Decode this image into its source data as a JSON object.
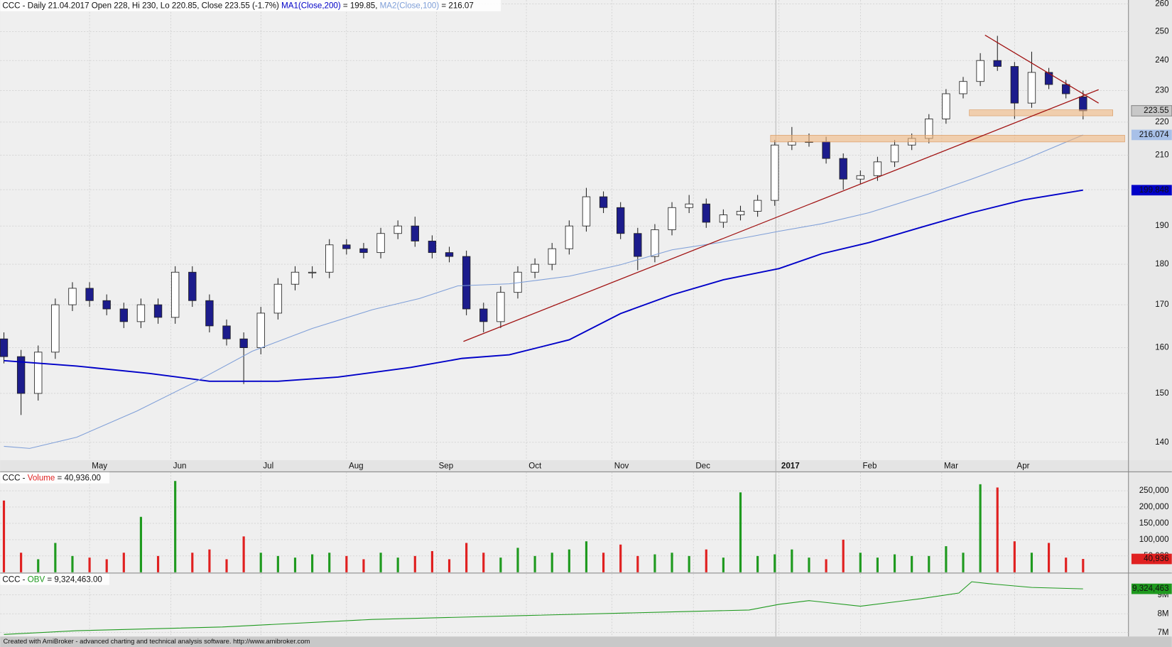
{
  "chart_data": [
    {
      "type": "candlestick",
      "title": "CCC - Daily 21.04.2017 Open 228, Hi 230, Lo 220.85, Close 223.55 (-1.7%)",
      "log_scale": true,
      "grid": true,
      "xlim": [
        -0.87,
        262.6
      ],
      "xticks": [
        {
          "value": 20,
          "label": "May"
        },
        {
          "value": 39,
          "label": "Jun"
        },
        {
          "value": 60,
          "label": "Jul"
        },
        {
          "value": 80,
          "label": "Aug"
        },
        {
          "value": 101,
          "label": "Sep"
        },
        {
          "value": 122,
          "label": "Oct"
        },
        {
          "value": 142,
          "label": "Nov"
        },
        {
          "value": 161,
          "label": "Dec"
        },
        {
          "value": 181,
          "label": "2017"
        },
        {
          "value": 200,
          "label": "Feb"
        },
        {
          "value": 219,
          "label": "Mar"
        },
        {
          "value": 236,
          "label": "Apr"
        }
      ],
      "ylim": [
        136.5,
        261.4
      ],
      "yticks": [
        140,
        150,
        160,
        170,
        180,
        190,
        200,
        210,
        220,
        230,
        240,
        250,
        260
      ],
      "up_color": "#ffffff",
      "down_color": "#1c1c8c",
      "last_label": "223.55",
      "x": [
        0,
        4,
        8,
        12,
        16,
        20,
        24,
        28,
        32,
        36,
        40,
        44,
        48,
        52,
        56,
        60,
        64,
        68,
        72,
        76,
        80,
        84,
        88,
        92,
        96,
        100,
        104,
        108,
        112,
        116,
        120,
        124,
        128,
        132,
        136,
        140,
        144,
        148,
        152,
        156,
        160,
        164,
        168,
        172,
        176,
        180,
        184,
        188,
        192,
        196,
        200,
        204,
        208,
        212,
        216,
        220,
        224,
        228,
        232,
        236,
        240,
        244,
        248,
        252
      ],
      "open": [
        162,
        158,
        150,
        159,
        170,
        174,
        171,
        169,
        166,
        170,
        167,
        178,
        171,
        165,
        162,
        160,
        168,
        175,
        178,
        178,
        185,
        184,
        183,
        188,
        190,
        186,
        183,
        182,
        169,
        166,
        173,
        178,
        180,
        184,
        190,
        198,
        195,
        188,
        182,
        189,
        195,
        196,
        191,
        193,
        194,
        197,
        213,
        214,
        214,
        209,
        203,
        204,
        208,
        213,
        215,
        221,
        229,
        233,
        240,
        238,
        226,
        236,
        232,
        228
      ],
      "high": [
        163.5,
        159.5,
        160.5,
        171.5,
        175.5,
        175.5,
        172.5,
        170.5,
        171.5,
        171.5,
        179.5,
        179.5,
        172.5,
        166.5,
        163.5,
        169.5,
        176.5,
        179.5,
        179.5,
        186.5,
        186.5,
        185.5,
        189.5,
        191.5,
        192.5,
        187.5,
        184.5,
        183.5,
        170.5,
        174.5,
        179.5,
        181.5,
        185.5,
        191.5,
        200.5,
        199.5,
        196.5,
        189.5,
        190.5,
        196.5,
        198.5,
        197.5,
        194.5,
        195.5,
        198.5,
        214.5,
        218.5,
        216.5,
        215.5,
        210.5,
        205.5,
        209.5,
        214.5,
        216.5,
        222.5,
        230.5,
        234.5,
        242.5,
        248.5,
        239.5,
        243,
        237.5,
        233.5,
        230
      ],
      "low": [
        156.5,
        145.5,
        148.5,
        157.5,
        168.5,
        169.5,
        167.5,
        164.5,
        164.5,
        165.5,
        165.5,
        169.5,
        163.5,
        160.5,
        152,
        158.5,
        166.5,
        173.5,
        176.5,
        176.5,
        182.5,
        181.5,
        181.5,
        186.5,
        184.5,
        181.5,
        180.5,
        167.5,
        163.5,
        164.5,
        171.5,
        176.5,
        178.5,
        182.5,
        188.5,
        193.5,
        186.5,
        178.5,
        180.5,
        187.5,
        193.5,
        189.5,
        189.5,
        191.5,
        192.5,
        195.5,
        211.5,
        212.5,
        207.5,
        200,
        201.5,
        202.5,
        206.5,
        211.5,
        213.5,
        219.5,
        227.5,
        231.5,
        236.5,
        221,
        224.5,
        230.5,
        227.5,
        220.85
      ],
      "close": [
        158,
        150,
        159,
        170,
        174,
        171,
        169,
        166,
        170,
        167,
        178,
        171,
        165,
        162,
        160,
        168,
        175,
        178,
        178,
        185,
        184,
        183,
        188,
        190,
        186,
        183,
        182,
        169,
        166,
        173,
        178,
        180,
        184,
        190,
        198,
        195,
        188,
        182,
        189,
        195,
        196,
        191,
        193,
        194,
        197,
        213,
        214,
        214,
        209,
        203,
        204,
        208,
        213,
        215,
        221,
        229,
        233,
        240,
        238,
        226,
        236,
        232,
        229,
        223.55
      ],
      "series": [
        {
          "name": "MA1(Close,200)",
          "color": "#0000c8",
          "legend_label": "= 199.85,",
          "last_label": "199.848",
          "label_bg": "#0000c8",
          "x": [
            0,
            17,
            34,
            48,
            64,
            78,
            95,
            107,
            118,
            132,
            144,
            156,
            168,
            181,
            191,
            202,
            214,
            226,
            238,
            252
          ],
          "values": [
            157.1,
            155.9,
            154.3,
            152.6,
            152.6,
            153.5,
            155.6,
            157.6,
            158.4,
            161.8,
            167.9,
            172.4,
            176.1,
            178.9,
            182.7,
            185.6,
            189.6,
            193.6,
            197.1,
            199.85
          ]
        },
        {
          "name": "MA2(Close,100)",
          "color": "#7f9fd8",
          "legend_label": "= 216.07",
          "last_label": "216.074",
          "label_bg": "#a8c0e8",
          "x": [
            0,
            6,
            17,
            31,
            45,
            58,
            72,
            86,
            97,
            106,
            118,
            132,
            144,
            156,
            167,
            181,
            191,
            202,
            216,
            226,
            238,
            252
          ],
          "values": [
            139.2,
            138.8,
            141.0,
            146.3,
            152.6,
            159.2,
            164.4,
            168.8,
            171.5,
            174.6,
            175.1,
            177.0,
            179.9,
            183.7,
            185.6,
            188.6,
            190.6,
            193.6,
            198.8,
            203.0,
            208.5,
            216.07
          ]
        }
      ]
    },
    {
      "type": "bar",
      "title": "CCC -",
      "name": "Volume",
      "name_color": "#e02020",
      "legend_label": "= 40,936.00",
      "last_label": "40,936",
      "label_bg": "#e02020",
      "up_color": "#1f9a1f",
      "down_color": "#e02020",
      "grid": true,
      "xlim": [
        -0.87,
        262.6
      ],
      "ylim": [
        0,
        307000
      ],
      "yticks": [
        {
          "value": 50000,
          "label": "50,000"
        },
        {
          "value": 100000,
          "label": "100,000"
        },
        {
          "value": 150000,
          "label": "150,000"
        },
        {
          "value": 200000,
          "label": "200,000"
        },
        {
          "value": 250000,
          "label": "250,000"
        }
      ],
      "x": [
        0,
        4,
        8,
        12,
        16,
        20,
        24,
        28,
        32,
        36,
        40,
        44,
        48,
        52,
        56,
        60,
        64,
        68,
        72,
        76,
        80,
        84,
        88,
        92,
        96,
        100,
        104,
        108,
        112,
        116,
        120,
        124,
        128,
        132,
        136,
        140,
        144,
        148,
        152,
        156,
        160,
        164,
        168,
        172,
        176,
        180,
        184,
        188,
        192,
        196,
        200,
        204,
        208,
        212,
        216,
        220,
        224,
        228,
        232,
        236,
        240,
        244,
        248,
        252
      ],
      "values": [
        220000,
        60000,
        40000,
        90000,
        50000,
        45000,
        40000,
        60000,
        170000,
        50000,
        280000,
        60000,
        70000,
        40000,
        110000,
        60000,
        50000,
        45000,
        55000,
        60000,
        50000,
        40000,
        60000,
        45000,
        50000,
        65000,
        40000,
        90000,
        60000,
        45000,
        75000,
        50000,
        60000,
        70000,
        95000,
        60000,
        85000,
        50000,
        55000,
        60000,
        50000,
        70000,
        45000,
        245000,
        50000,
        55000,
        70000,
        45000,
        40000,
        100000,
        60000,
        45000,
        55000,
        50000,
        50000,
        80000,
        60000,
        270000,
        260000,
        95000,
        60000,
        90000,
        45000,
        40936
      ]
    },
    {
      "type": "line",
      "title": "CCC -",
      "name": "OBV",
      "color": "#1f9a1f",
      "legend_label": "= 9,324,463.00",
      "last_label": "9,324,463",
      "label_bg": "#1f9a1f",
      "grid": true,
      "xlim": [
        -0.87,
        262.6
      ],
      "ylim": [
        6790000,
        10125000
      ],
      "yticks": [
        {
          "value": 7000000,
          "label": "7M"
        },
        {
          "value": 8000000,
          "label": "8M"
        },
        {
          "value": 9000000,
          "label": "9M"
        }
      ],
      "x": [
        0,
        17,
        51,
        86,
        121,
        156,
        174,
        181,
        188,
        200,
        214,
        223,
        226,
        230,
        240,
        252
      ],
      "values": [
        6900000,
        7100000,
        7300000,
        7700000,
        7900000,
        8100000,
        8200000,
        8500000,
        8700000,
        8400000,
        8800000,
        9100000,
        9700000,
        9600000,
        9400000,
        9324463
      ]
    }
  ],
  "footer": "Created with AmiBroker - advanced charting and technical analysis software. http://www.amibroker.com"
}
